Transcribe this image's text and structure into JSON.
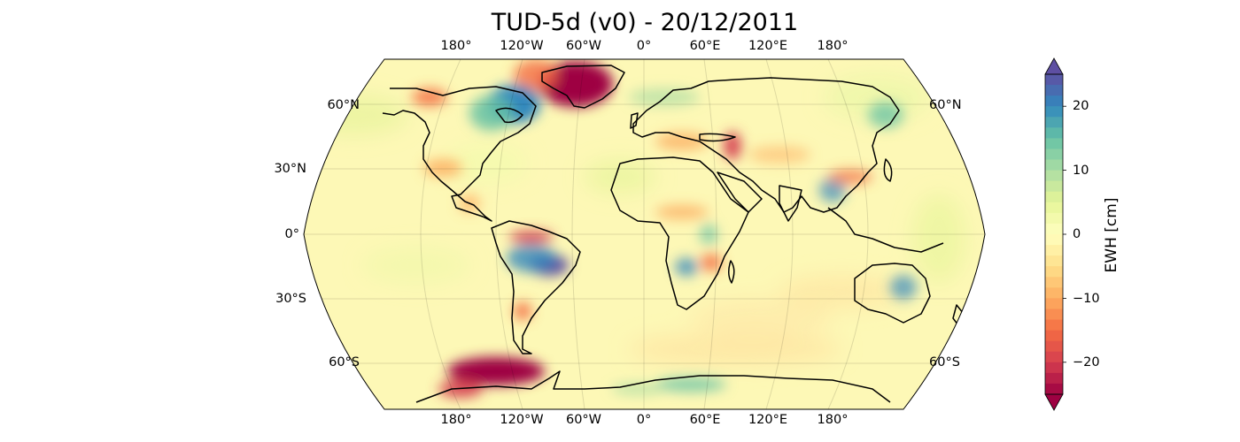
{
  "title": "TUD-5d (v0) - 20/12/2011",
  "top_lon_labels": [
    "180°",
    "120°W",
    "60°W",
    "0°",
    "60°E",
    "120°E",
    "180°"
  ],
  "bottom_lon_labels": [
    "180°",
    "120°W",
    "60°W",
    "0°",
    "60°E",
    "120°E",
    "180°"
  ],
  "left_lat_labels": [
    "60°N",
    "30°N",
    "0°",
    "30°S",
    "60°S"
  ],
  "right_lat_labels": [
    "60°N",
    "60°S"
  ],
  "colorbar": {
    "label": "EWH [cm]",
    "ticks": [
      "20",
      "10",
      "0",
      "−10",
      "−20"
    ],
    "tick_values": [
      20,
      10,
      0,
      -10,
      -20
    ],
    "range": [
      -25,
      25
    ],
    "extend": "both",
    "colormap": "Spectral",
    "colors": [
      "#9e0142",
      "#d53e4f",
      "#f46d43",
      "#fdae61",
      "#fee08b",
      "#ffffbf",
      "#e6f598",
      "#abdda4",
      "#66c2a5",
      "#3288bd",
      "#5e4fa2"
    ]
  },
  "map": {
    "projection": "Robinson",
    "ocean_color": "#fdf8b6",
    "coastline_color": "#000000",
    "gridlines": true
  }
}
